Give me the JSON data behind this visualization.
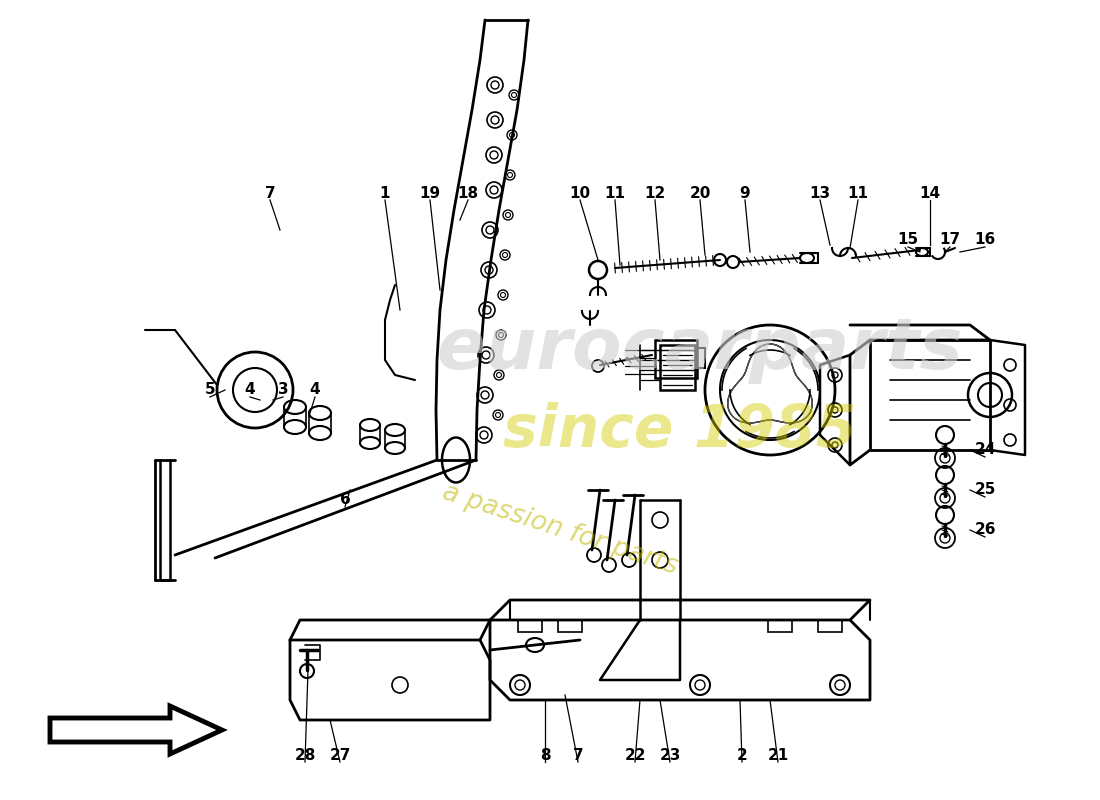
{
  "bg_color": "#ffffff",
  "line_color": "#000000",
  "label_fontsize": 11,
  "watermark1": "eurocarparts",
  "watermark2": "since 1985",
  "watermark3": "a passion for parts",
  "labels": [
    [
      "1",
      385,
      193
    ],
    [
      "19",
      430,
      193
    ],
    [
      "18",
      468,
      193
    ],
    [
      "10",
      580,
      193
    ],
    [
      "11",
      615,
      193
    ],
    [
      "12",
      655,
      193
    ],
    [
      "20",
      700,
      193
    ],
    [
      "9",
      745,
      193
    ],
    [
      "13",
      820,
      193
    ],
    [
      "11",
      858,
      193
    ],
    [
      "14",
      930,
      193
    ],
    [
      "15",
      908,
      240
    ],
    [
      "17",
      950,
      240
    ],
    [
      "16",
      985,
      240
    ],
    [
      "5",
      210,
      390
    ],
    [
      "4",
      250,
      390
    ],
    [
      "3",
      283,
      390
    ],
    [
      "4",
      315,
      390
    ],
    [
      "6",
      345,
      500
    ],
    [
      "7",
      270,
      193
    ],
    [
      "28",
      305,
      755
    ],
    [
      "27",
      340,
      755
    ],
    [
      "8",
      545,
      755
    ],
    [
      "7",
      578,
      755
    ],
    [
      "22",
      635,
      755
    ],
    [
      "23",
      670,
      755
    ],
    [
      "2",
      742,
      755
    ],
    [
      "21",
      778,
      755
    ],
    [
      "24",
      985,
      450
    ],
    [
      "25",
      985,
      490
    ],
    [
      "26",
      985,
      530
    ]
  ]
}
